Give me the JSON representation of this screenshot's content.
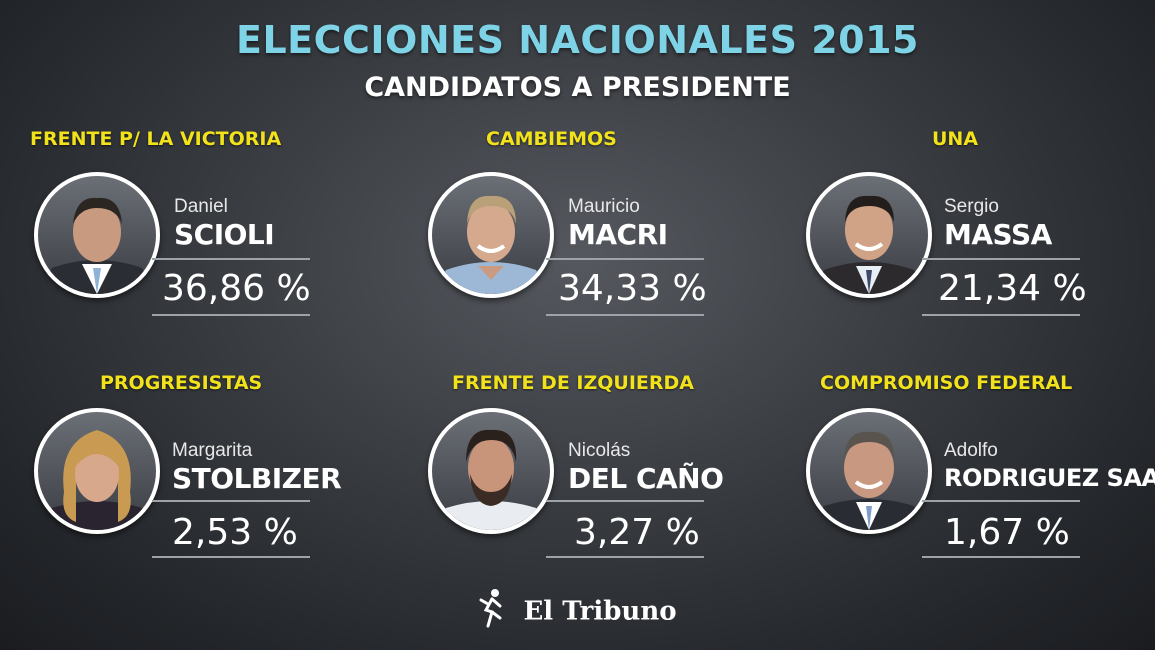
{
  "header": {
    "title": "ELECCIONES NACIONALES 2015",
    "subtitle": "CANDIDATOS A PRESIDENTE"
  },
  "candidates": [
    {
      "party": "FRENTE P/ LA VICTORIA",
      "first_name": "Daniel",
      "last_name": "SCIOLI",
      "percent": "36,86 %"
    },
    {
      "party": "CAMBIEMOS",
      "first_name": "Mauricio",
      "last_name": "MACRI",
      "percent": "34,33 %"
    },
    {
      "party": "UNA",
      "first_name": "Sergio",
      "last_name": "MASSA",
      "percent": "21,34 %"
    },
    {
      "party": "PROGRESISTAS",
      "first_name": "Margarita",
      "last_name": "STOLBIZER",
      "percent": "2,53 %"
    },
    {
      "party": "FRENTE DE IZQUIERDA",
      "first_name": "Nicolás",
      "last_name": "DEL CAÑO",
      "percent": "3,27 %"
    },
    {
      "party": "COMPROMISO FEDERAL",
      "first_name": "Adolfo",
      "last_name": "RODRIGUEZ SAA",
      "percent": "1,67 %"
    }
  ],
  "footer": {
    "logo_text": "El Tribuno"
  },
  "colors": {
    "title": "#7ed3e6",
    "party": "#f2e21b",
    "text": "#ffffff"
  }
}
